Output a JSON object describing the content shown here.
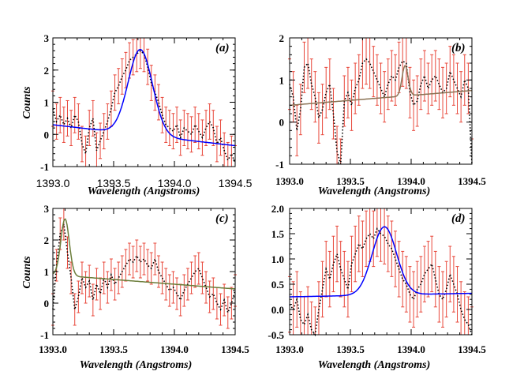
{
  "chart_data": [
    {
      "type": "line",
      "panel_label": "(a)",
      "xlabel": "Wavelength (Angstroms)",
      "ylabel": "Counts",
      "xlim": [
        1393.0,
        1394.5
      ],
      "ylim": [
        -1,
        3
      ],
      "x_ticks": [
        "1393.0",
        "1393.5",
        "1394.0",
        "1394.5"
      ],
      "y_ticks": [
        "-1",
        "0",
        "1",
        "2",
        "3"
      ],
      "tick_style": "regular",
      "fit_color": "#0000ff",
      "data_color": "#000000",
      "error_color": "#e8473a",
      "fit": {
        "type": "gaussian",
        "amp": 2.65,
        "center": 1393.72,
        "sigma": 0.1,
        "baseline_start": 0.3,
        "baseline_end": -0.35
      },
      "series": [
        {
          "name": "",
          "x": [
            1393.0,
            1393.03,
            1393.06,
            1393.09,
            1393.12,
            1393.15,
            1393.18,
            1393.21,
            1393.24,
            1393.27,
            1393.3,
            1393.33,
            1393.36,
            1393.39,
            1393.42,
            1393.45,
            1393.48,
            1393.51,
            1393.54,
            1393.57,
            1393.6,
            1393.63,
            1393.66,
            1393.69,
            1393.72,
            1393.75,
            1393.78,
            1393.81,
            1393.84,
            1393.87,
            1393.9,
            1393.93,
            1393.96,
            1393.99,
            1394.02,
            1394.05,
            1394.08,
            1394.11,
            1394.14,
            1394.17,
            1394.2,
            1394.23,
            1394.26,
            1394.29,
            1394.32,
            1394.35,
            1394.38,
            1394.41,
            1394.44,
            1394.47,
            1394.5
          ],
          "y": [
            0.8,
            0.4,
            0.6,
            0.3,
            0.5,
            0.2,
            0.6,
            0.4,
            -0.3,
            -0.6,
            0.2,
            0.5,
            -0.5,
            -0.2,
            0.1,
            0.4,
            0.8,
            1.3,
            1.5,
            1.8,
            2.0,
            2.3,
            2.4,
            2.5,
            2.6,
            2.5,
            2.1,
            1.6,
            1.3,
            1.0,
            0.6,
            0.3,
            0.2,
            0.1,
            0.3,
            -0.1,
            0.2,
            0.1,
            0.0,
            0.3,
            0.1,
            -0.1,
            0.2,
            0.4,
            0.2,
            -0.3,
            -0.1,
            -0.5,
            -0.8,
            -0.6,
            -0.9
          ],
          "err": [
            0.55,
            0.55,
            0.55,
            0.55,
            0.55,
            0.55,
            0.55,
            0.55,
            0.55,
            0.55,
            0.55,
            0.55,
            0.55,
            0.55,
            0.55,
            0.55,
            0.55,
            0.55,
            0.55,
            0.55,
            0.55,
            0.55,
            0.55,
            0.55,
            0.55,
            0.55,
            0.55,
            0.55,
            0.55,
            0.55,
            0.55,
            0.55,
            0.55,
            0.55,
            0.55,
            0.55,
            0.55,
            0.55,
            0.55,
            0.55,
            0.55,
            0.55,
            0.55,
            0.55,
            0.55,
            0.55,
            0.55,
            0.55,
            0.55,
            0.55,
            0.55
          ]
        }
      ]
    },
    {
      "type": "line",
      "panel_label": "(b)",
      "xlabel": "Wavelength (Angstroms)",
      "ylabel": "",
      "xlim": [
        1393.0,
        1394.5
      ],
      "ylim": [
        -1,
        2
      ],
      "x_ticks": [
        "1393.0",
        "1393.5",
        "1394.0",
        "1394.5"
      ],
      "y_ticks": [
        "-1",
        "0",
        "1",
        "2"
      ],
      "tick_style": "bold",
      "fit_color": "#8b7355",
      "data_color": "#000000",
      "error_color": "#e8473a",
      "fit": {
        "type": "gaussian",
        "amp": 0.72,
        "center": 1393.95,
        "sigma": 0.025,
        "baseline_start": 0.4,
        "baseline_end": 0.75
      },
      "series": [
        {
          "name": "",
          "x": [
            1393.0,
            1393.03,
            1393.06,
            1393.09,
            1393.12,
            1393.15,
            1393.18,
            1393.21,
            1393.24,
            1393.27,
            1393.3,
            1393.33,
            1393.36,
            1393.39,
            1393.42,
            1393.45,
            1393.48,
            1393.51,
            1393.54,
            1393.57,
            1393.6,
            1393.63,
            1393.66,
            1393.69,
            1393.72,
            1393.75,
            1393.78,
            1393.81,
            1393.84,
            1393.87,
            1393.9,
            1393.93,
            1393.96,
            1393.99,
            1394.02,
            1394.05,
            1394.08,
            1394.11,
            1394.14,
            1394.17,
            1394.2,
            1394.23,
            1394.26,
            1394.29,
            1394.32,
            1394.35,
            1394.38,
            1394.41,
            1394.44,
            1394.47,
            1394.5
          ],
          "y": [
            0.9,
            0.6,
            -0.2,
            0.3,
            1.3,
            1.4,
            0.9,
            0.6,
            0.1,
            0.3,
            0.7,
            0.9,
            0.2,
            -0.7,
            -1.0,
            0.5,
            0.7,
            0.4,
            0.8,
            1.0,
            1.4,
            1.5,
            1.4,
            1.2,
            1.0,
            0.8,
            0.6,
            0.9,
            1.1,
            1.0,
            1.3,
            1.45,
            1.4,
            0.7,
            0.4,
            0.5,
            0.9,
            1.1,
            0.8,
            1.0,
            1.1,
            0.9,
            0.7,
            0.8,
            1.2,
            1.0,
            0.8,
            0.6,
            1.0,
            0.8,
            -1.0
          ],
          "err": [
            0.6,
            0.6,
            0.6,
            0.6,
            0.6,
            0.6,
            0.6,
            0.6,
            0.6,
            0.6,
            0.6,
            0.6,
            0.6,
            0.6,
            0.6,
            0.6,
            0.6,
            0.6,
            0.6,
            0.6,
            0.6,
            0.6,
            0.6,
            0.6,
            0.6,
            0.6,
            0.6,
            0.6,
            0.6,
            0.6,
            0.6,
            0.6,
            0.6,
            0.6,
            0.6,
            0.6,
            0.6,
            0.6,
            0.6,
            0.6,
            0.6,
            0.6,
            0.6,
            0.6,
            0.6,
            0.6,
            0.6,
            0.6,
            0.6,
            0.6,
            0.6
          ]
        }
      ]
    },
    {
      "type": "line",
      "panel_label": "(c)",
      "xlabel": "Wavelength (Angstroms)",
      "ylabel": "Counts",
      "xlim": [
        1393.0,
        1394.5
      ],
      "ylim": [
        -1,
        3
      ],
      "x_ticks": [
        "1393.0",
        "1393.5",
        "1394.0",
        "1394.5"
      ],
      "y_ticks": [
        "-1",
        "0",
        "1",
        "2",
        "3"
      ],
      "tick_style": "bold",
      "fit_color": "#6b7d3a",
      "data_color": "#000000",
      "error_color": "#e8473a",
      "fit": {
        "type": "gaussian",
        "amp": 1.8,
        "center": 1393.1,
        "sigma": 0.035,
        "baseline_start": 0.9,
        "baseline_end": 0.45
      },
      "series": [
        {
          "name": "",
          "x": [
            1393.0,
            1393.03,
            1393.06,
            1393.09,
            1393.12,
            1393.15,
            1393.18,
            1393.21,
            1393.24,
            1393.27,
            1393.3,
            1393.33,
            1393.36,
            1393.39,
            1393.42,
            1393.45,
            1393.48,
            1393.51,
            1393.54,
            1393.57,
            1393.6,
            1393.63,
            1393.66,
            1393.69,
            1393.72,
            1393.75,
            1393.78,
            1393.81,
            1393.84,
            1393.87,
            1393.9,
            1393.93,
            1393.96,
            1393.99,
            1394.02,
            1394.05,
            1394.08,
            1394.11,
            1394.14,
            1394.17,
            1394.2,
            1394.23,
            1394.26,
            1394.29,
            1394.32,
            1394.35,
            1394.38,
            1394.41,
            1394.44,
            1394.47,
            1394.5
          ],
          "y": [
            -0.2,
            1.2,
            2.2,
            2.5,
            1.6,
            0.8,
            -0.2,
            0.2,
            0.8,
            0.5,
            0.7,
            0.1,
            0.6,
            0.3,
            0.8,
            0.5,
            0.9,
            0.6,
            0.8,
            1.0,
            1.2,
            1.4,
            1.3,
            1.5,
            1.3,
            1.4,
            1.2,
            1.1,
            1.4,
            1.0,
            0.8,
            0.6,
            0.4,
            0.5,
            0.3,
            0.1,
            0.4,
            0.6,
            0.8,
            1.0,
            1.1,
            0.8,
            0.5,
            0.2,
            0.3,
            0.0,
            -0.2,
            0.1,
            -0.3,
            0.0,
            0.4
          ],
          "err": [
            0.5,
            0.5,
            0.5,
            0.5,
            0.5,
            0.5,
            0.5,
            0.5,
            0.5,
            0.5,
            0.5,
            0.5,
            0.5,
            0.5,
            0.5,
            0.5,
            0.5,
            0.5,
            0.5,
            0.5,
            0.5,
            0.5,
            0.5,
            0.5,
            0.5,
            0.5,
            0.5,
            0.5,
            0.5,
            0.5,
            0.5,
            0.5,
            0.5,
            0.5,
            0.5,
            0.5,
            0.5,
            0.5,
            0.5,
            0.5,
            0.5,
            0.5,
            0.5,
            0.5,
            0.5,
            0.5,
            0.5,
            0.5,
            0.5,
            0.5,
            0.5
          ]
        }
      ]
    },
    {
      "type": "line",
      "panel_label": "(d)",
      "xlabel": "Wavelength (Angstroms)",
      "ylabel": "",
      "xlim": [
        1393.0,
        1394.5
      ],
      "ylim": [
        -0.5,
        2.0
      ],
      "x_ticks": [
        "1393.0",
        "1393.5",
        "1394.0",
        "1394.5"
      ],
      "y_ticks": [
        "-0.5",
        "0.0",
        "0.5",
        "1.0",
        "1.5",
        "2.0"
      ],
      "tick_style": "bold",
      "fit_color": "#0000ff",
      "data_color": "#000000",
      "error_color": "#e8473a",
      "fit": {
        "type": "gaussian",
        "amp": 1.35,
        "center": 1393.78,
        "sigma": 0.1,
        "baseline_start": 0.25,
        "baseline_end": 0.32
      },
      "series": [
        {
          "name": "",
          "x": [
            1393.0,
            1393.03,
            1393.06,
            1393.09,
            1393.12,
            1393.15,
            1393.18,
            1393.21,
            1393.24,
            1393.27,
            1393.3,
            1393.33,
            1393.36,
            1393.39,
            1393.42,
            1393.45,
            1393.48,
            1393.51,
            1393.54,
            1393.57,
            1393.6,
            1393.63,
            1393.66,
            1393.69,
            1393.72,
            1393.75,
            1393.78,
            1393.81,
            1393.84,
            1393.87,
            1393.9,
            1393.93,
            1393.96,
            1393.99,
            1394.02,
            1394.05,
            1394.08,
            1394.11,
            1394.14,
            1394.17,
            1394.2,
            1394.23,
            1394.26,
            1394.29,
            1394.32,
            1394.35,
            1394.38,
            1394.41,
            1394.44,
            1394.47,
            1394.5
          ],
          "y": [
            0.1,
            0.0,
            0.2,
            -0.2,
            -0.3,
            -0.1,
            -0.4,
            -0.5,
            0.0,
            0.4,
            0.8,
            0.6,
            0.9,
            1.1,
            0.8,
            0.6,
            0.4,
            0.9,
            1.1,
            1.3,
            1.2,
            1.4,
            1.5,
            1.4,
            1.6,
            1.5,
            1.45,
            1.3,
            1.2,
            1.0,
            0.8,
            0.6,
            0.5,
            0.3,
            0.2,
            0.4,
            0.5,
            0.7,
            0.8,
            0.9,
            0.6,
            0.3,
            0.2,
            0.4,
            0.7,
            0.5,
            0.3,
            0.0,
            -0.2,
            -0.3,
            -0.5
          ],
          "err": [
            0.55,
            0.55,
            0.55,
            0.55,
            0.55,
            0.55,
            0.55,
            0.55,
            0.55,
            0.55,
            0.55,
            0.55,
            0.55,
            0.55,
            0.55,
            0.55,
            0.55,
            0.55,
            0.55,
            0.55,
            0.55,
            0.55,
            0.55,
            0.55,
            0.55,
            0.55,
            0.55,
            0.55,
            0.55,
            0.55,
            0.55,
            0.55,
            0.55,
            0.55,
            0.55,
            0.55,
            0.55,
            0.55,
            0.55,
            0.55,
            0.55,
            0.55,
            0.55,
            0.55,
            0.55,
            0.55,
            0.55,
            0.55,
            0.55,
            0.55,
            0.55
          ]
        }
      ]
    }
  ]
}
